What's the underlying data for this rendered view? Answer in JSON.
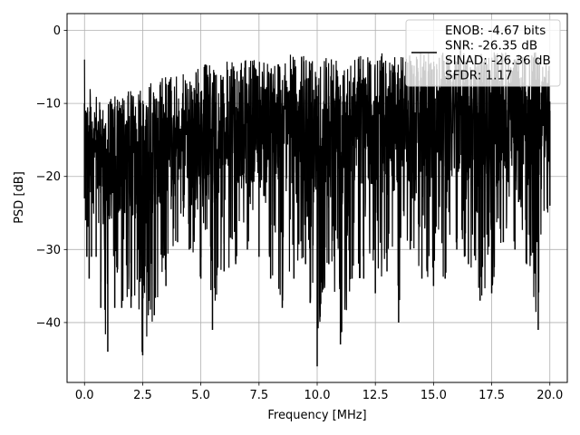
{
  "chart_data": {
    "type": "line",
    "title": "",
    "xlabel": "Frequency [MHz]",
    "ylabel": "PSD [dB]",
    "xlim": [
      -0.75,
      20.75
    ],
    "ylim": [
      -48.2,
      2.3
    ],
    "xticks": [
      0.0,
      2.5,
      5.0,
      7.5,
      10.0,
      12.5,
      15.0,
      17.5,
      20.0
    ],
    "xtick_labels": [
      "0.0",
      "2.5",
      "5.0",
      "7.5",
      "10.0",
      "12.5",
      "15.0",
      "17.5",
      "20.0"
    ],
    "yticks": [
      0,
      -10,
      -20,
      -30,
      -40
    ],
    "ytick_labels": [
      "0",
      "−10",
      "−20",
      "−30",
      "−40"
    ],
    "grid": true,
    "legend_position": "top-right",
    "series": [
      {
        "name": "ENOB: -4.67 bits\nSNR: -26.35 dB\nSINAD: -26.36 dB\nSFDR: 1.17",
        "color": "#000000",
        "x": [
          0.0,
          0.05,
          0.1,
          0.2,
          0.3,
          0.5,
          0.7,
          1.0,
          1.3,
          1.6,
          2.0,
          2.5,
          3.0,
          3.5,
          4.0,
          4.5,
          5.0,
          5.5,
          6.0,
          6.5,
          7.0,
          7.5,
          8.0,
          8.5,
          9.0,
          9.5,
          10.0,
          10.5,
          11.0,
          11.5,
          12.0,
          12.5,
          13.0,
          13.5,
          14.0,
          14.5,
          15.0,
          15.5,
          16.0,
          16.5,
          17.0,
          17.5,
          18.0,
          18.5,
          19.0,
          19.5,
          20.0
        ],
        "y_upper": [
          -4,
          -5,
          -8,
          -7,
          -9,
          -9,
          -10,
          -9,
          -9,
          -9,
          -8,
          -7,
          -7,
          -6,
          -6,
          -6,
          -4.5,
          -4.5,
          -4,
          -4.5,
          -4,
          -3.5,
          -3.5,
          -4,
          -3,
          -3.5,
          -3,
          -3,
          -3,
          -3,
          -3,
          -3,
          -3,
          -3.5,
          -3,
          -3,
          -2.5,
          -2.5,
          -2.5,
          -3,
          -3,
          -2.5,
          -3,
          -3,
          -3,
          -3,
          -5
        ],
        "y_lower": [
          -23,
          -26,
          -31,
          -34,
          -31,
          -31,
          -38,
          -44,
          -38,
          -38,
          -38,
          -44.5,
          -39,
          -35,
          -29,
          -30,
          -34,
          -41,
          -33,
          -32,
          -30,
          -31,
          -34,
          -38,
          -34,
          -32,
          -46,
          -32,
          -43,
          -34,
          -34,
          -36,
          -33,
          -40,
          -30,
          -34,
          -35,
          -34,
          -30,
          -32,
          -37,
          -36,
          -29,
          -30,
          -32,
          -41,
          -24
        ]
      }
    ]
  }
}
